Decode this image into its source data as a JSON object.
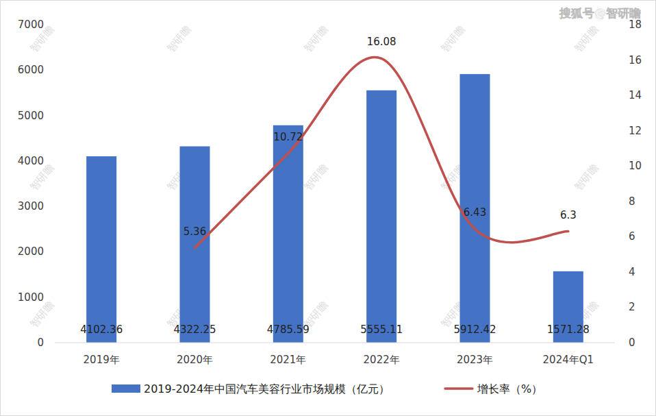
{
  "chart_data": {
    "type": "bar",
    "categories": [
      "2019年",
      "2020年",
      "2021年",
      "2022年",
      "2023年",
      "2024年Q1"
    ],
    "series": [
      {
        "name": "2019-2024年中国汽车美容行业市场规模（亿元）",
        "type": "bar",
        "color": "#4472c4",
        "values": [
          4102.36,
          4322.25,
          4785.59,
          5555.11,
          5912.42,
          1571.28
        ]
      },
      {
        "name": "增长率（%）",
        "type": "line",
        "color": "#c0504d",
        "axis": "y2",
        "line_style": "smooth",
        "values": [
          null,
          5.36,
          10.72,
          16.08,
          6.43,
          6.3
        ]
      }
    ],
    "ylim": [
      0,
      7000
    ],
    "yticks": [
      0,
      1000,
      2000,
      3000,
      4000,
      5000,
      6000,
      7000
    ],
    "y2lim": [
      0,
      18
    ],
    "y2ticks": [
      0,
      2,
      4,
      6,
      8,
      10,
      12,
      14,
      16,
      18
    ],
    "grid": false,
    "legend": "bottom",
    "data_labels": true,
    "source": "搜狐号@智研瞻",
    "watermark": "智研瞻"
  }
}
